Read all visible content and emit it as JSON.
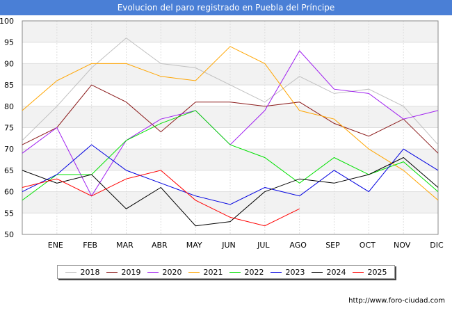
{
  "header": {
    "title": "Evolucion del paro registrado en Puebla del Príncipe"
  },
  "source": "http://www.foro-ciudad.com",
  "chart_data": {
    "type": "line",
    "title": "Evolucion del paro registrado en Puebla del Príncipe",
    "xlabel": "",
    "ylabel": "",
    "categories": [
      "",
      "ENE",
      "FEB",
      "MAR",
      "ABR",
      "MAY",
      "JUN",
      "JUL",
      "AGO",
      "SEP",
      "OCT",
      "NOV",
      "DIC"
    ],
    "ylim": [
      50,
      100
    ],
    "yticks": [
      50,
      55,
      60,
      65,
      70,
      75,
      80,
      85,
      90,
      95,
      100
    ],
    "grid": true,
    "legend_position": "bottom",
    "series": [
      {
        "name": "2018",
        "color": "#c0c0c0",
        "values": [
          72,
          80,
          89,
          96,
          90,
          89,
          85,
          81,
          87,
          83,
          84,
          80,
          71
        ]
      },
      {
        "name": "2019",
        "color": "#8b1a1a",
        "values": [
          71,
          75,
          85,
          81,
          74,
          81,
          81,
          80,
          81,
          76,
          73,
          77,
          69
        ]
      },
      {
        "name": "2020",
        "color": "#a020f0",
        "values": [
          69,
          75,
          59,
          72,
          77,
          79,
          71,
          79,
          93,
          84,
          83,
          77,
          79
        ]
      },
      {
        "name": "2021",
        "color": "#ffa500",
        "values": [
          79,
          86,
          90,
          90,
          87,
          86,
          94,
          90,
          79,
          77,
          70,
          65,
          58
        ]
      },
      {
        "name": "2022",
        "color": "#00e000",
        "values": [
          58,
          64,
          64,
          72,
          76,
          79,
          71,
          68,
          62,
          68,
          64,
          67,
          60
        ]
      },
      {
        "name": "2023",
        "color": "#0000e0",
        "values": [
          60,
          64,
          71,
          65,
          62,
          59,
          57,
          61,
          59,
          65,
          60,
          70,
          65
        ]
      },
      {
        "name": "2024",
        "color": "#000000",
        "values": [
          65,
          62,
          64,
          56,
          61,
          52,
          53,
          60,
          63,
          62,
          64,
          68,
          61
        ]
      },
      {
        "name": "2025",
        "color": "#ff0000",
        "values": [
          61,
          63,
          59,
          63,
          65,
          58,
          54,
          52,
          56,
          null,
          null,
          null,
          null
        ]
      }
    ]
  }
}
